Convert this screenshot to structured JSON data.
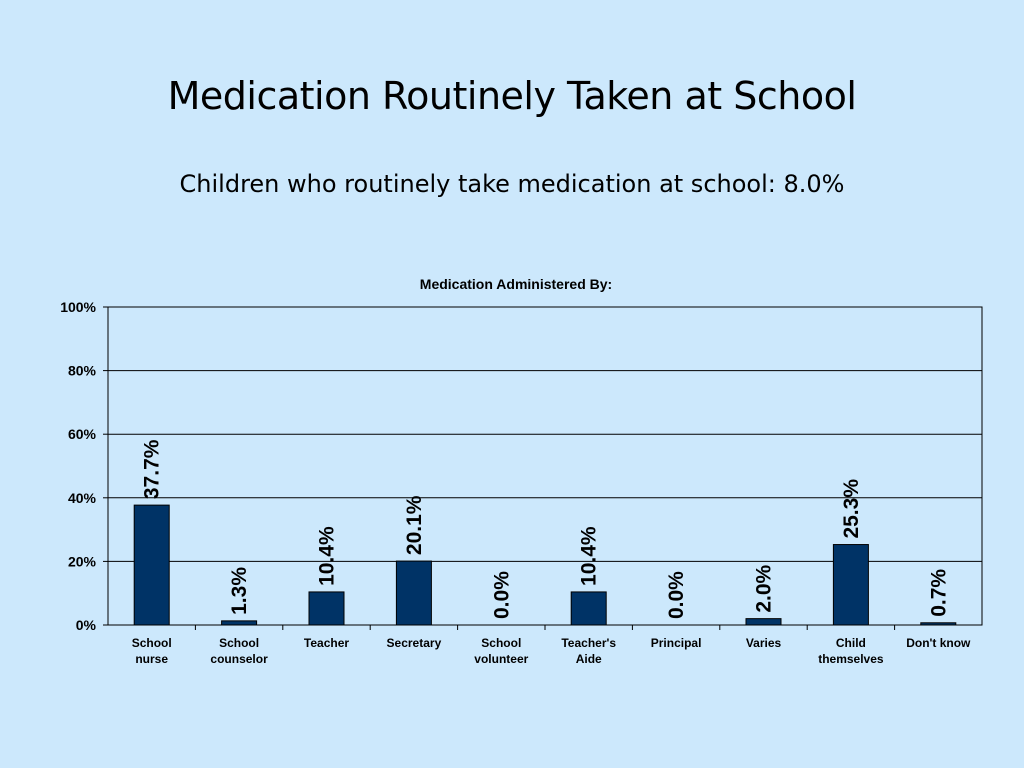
{
  "slide": {
    "title": "Medication Routinely Taken at School",
    "subtitle": "Children who routinely take medication at school:  8.0%"
  },
  "chart_data": {
    "type": "bar",
    "title": "Medication Administered By:",
    "xlabel": "",
    "ylabel": "",
    "ylim": [
      0,
      100
    ],
    "yticks": [
      "0%",
      "20%",
      "40%",
      "60%",
      "80%",
      "100%"
    ],
    "ytick_values": [
      0,
      20,
      40,
      60,
      80,
      100
    ],
    "grid": true,
    "legend": "none",
    "categories": [
      [
        "School",
        "nurse"
      ],
      [
        "School",
        "counselor"
      ],
      [
        "Teacher"
      ],
      [
        "Secretary"
      ],
      [
        "School",
        "volunteer"
      ],
      [
        "Teacher's",
        "Aide"
      ],
      [
        "Principal"
      ],
      [
        "Varies"
      ],
      [
        "Child",
        "themselves"
      ],
      [
        "Don't know"
      ]
    ],
    "values": [
      37.7,
      1.3,
      10.4,
      20.1,
      0.0,
      10.4,
      0.0,
      2.0,
      25.3,
      0.7
    ],
    "data_labels": [
      "37.7%",
      "1.3%",
      "10.4%",
      "20.1%",
      "0.0%",
      "10.4%",
      "0.0%",
      "2.0%",
      "25.3%",
      "0.7%"
    ],
    "bar_color": "#003366",
    "background_color": "#cce8fc"
  }
}
